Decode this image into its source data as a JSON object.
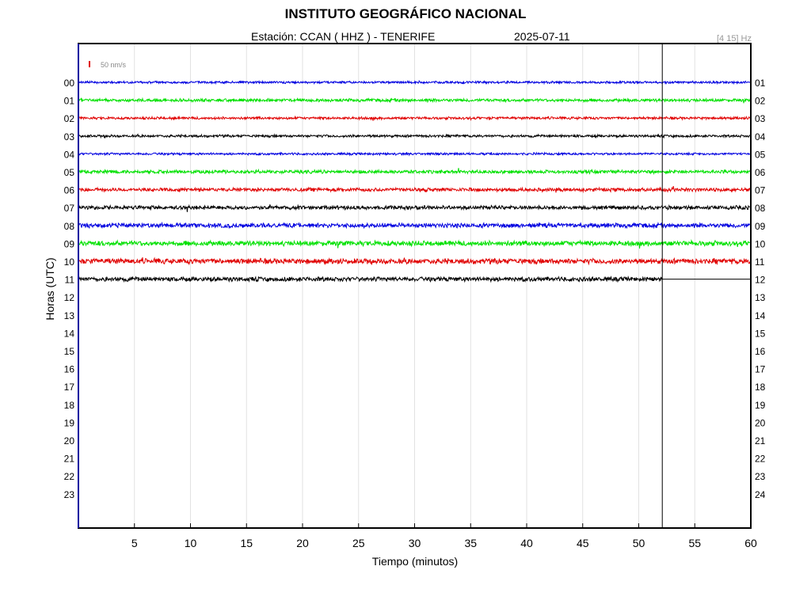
{
  "header": {
    "title": "INSTITUTO GEOGRÁFICO NACIONAL",
    "station": "Estación:  CCAN ( HHZ ) - TENERIFE",
    "date": "2025-07-11",
    "filter": "[4 15] Hz"
  },
  "chart_data": {
    "type": "line",
    "title": "INSTITUTO GEOGRÁFICO NACIONAL",
    "subtitle": "Estación:  CCAN ( HHZ ) - TENERIFE",
    "xlabel": "Tiempo (minutos)",
    "ylabel": "Horas (UTC)",
    "xlim": [
      0,
      60
    ],
    "x_ticks": [
      5,
      10,
      15,
      20,
      25,
      30,
      35,
      40,
      45,
      50,
      55,
      60
    ],
    "y_ticks_left": [
      "00",
      "01",
      "02",
      "03",
      "04",
      "05",
      "06",
      "07",
      "08",
      "09",
      "10",
      "11",
      "12",
      "13",
      "14",
      "15",
      "16",
      "17",
      "18",
      "19",
      "20",
      "21",
      "22",
      "23"
    ],
    "y_ticks_right": [
      "01",
      "02",
      "03",
      "04",
      "05",
      "06",
      "07",
      "08",
      "09",
      "10",
      "11",
      "12",
      "13",
      "14",
      "15",
      "16",
      "17",
      "18",
      "19",
      "20",
      "21",
      "22",
      "23",
      "24"
    ],
    "scale_bar": "50 nm/s",
    "scale_color": "#e00000",
    "current_time_minute": 52.1,
    "grid": true,
    "series": [
      {
        "hour": 0,
        "color": "#0000e0",
        "start": 0,
        "end": 60,
        "amplitude": 1.6
      },
      {
        "hour": 1,
        "color": "#00e000",
        "start": 0,
        "end": 60,
        "amplitude": 2.2
      },
      {
        "hour": 2,
        "color": "#e00000",
        "start": 0,
        "end": 60,
        "amplitude": 1.8
      },
      {
        "hour": 3,
        "color": "#000000",
        "start": 0,
        "end": 60,
        "amplitude": 1.8
      },
      {
        "hour": 4,
        "color": "#0000e0",
        "start": 0,
        "end": 60,
        "amplitude": 1.6
      },
      {
        "hour": 5,
        "color": "#00e000",
        "start": 0,
        "end": 60,
        "amplitude": 2.4
      },
      {
        "hour": 6,
        "color": "#e00000",
        "start": 0,
        "end": 60,
        "amplitude": 2.6
      },
      {
        "hour": 7,
        "color": "#000000",
        "start": 0,
        "end": 60,
        "amplitude": 2.8
      },
      {
        "hour": 8,
        "color": "#0000e0",
        "start": 0,
        "end": 60,
        "amplitude": 3.2
      },
      {
        "hour": 9,
        "color": "#00e000",
        "start": 0,
        "end": 60,
        "amplitude": 3.6
      },
      {
        "hour": 10,
        "color": "#e00000",
        "start": 0,
        "end": 60,
        "amplitude": 3.8
      },
      {
        "hour": 11,
        "color": "#000000",
        "start": 0,
        "end": 52.1,
        "amplitude": 3.2
      }
    ]
  }
}
